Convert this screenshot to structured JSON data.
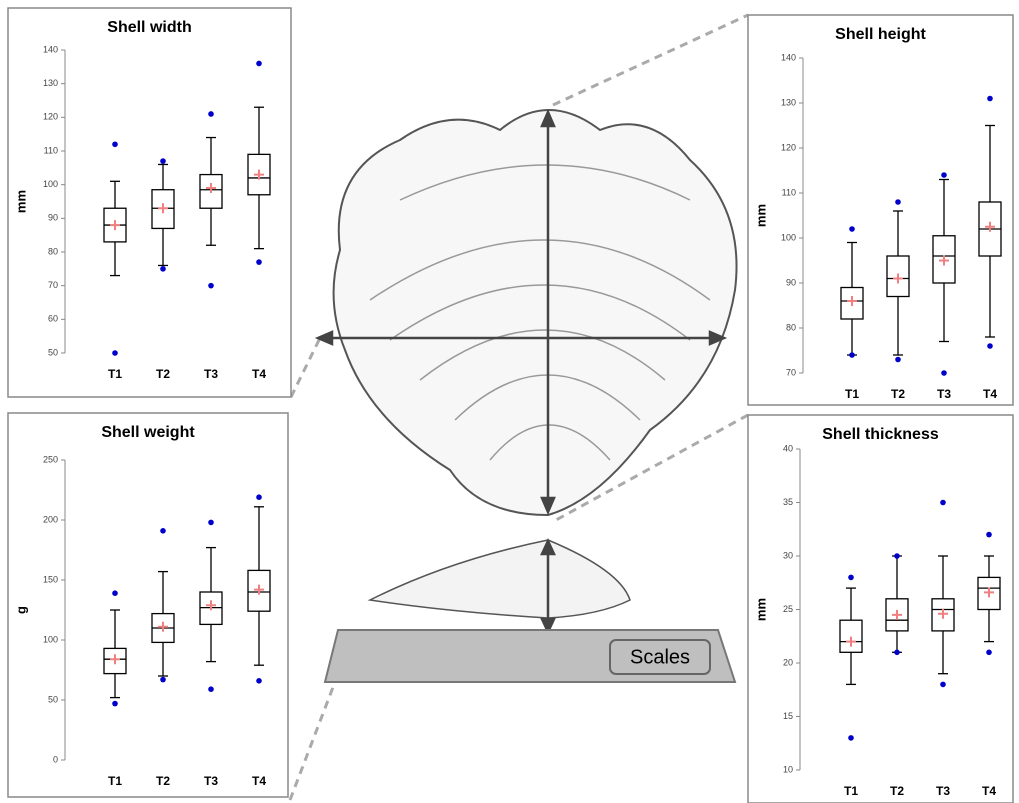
{
  "chart_data": [
    {
      "type": "box",
      "title": "Shell width",
      "y_label": "mm",
      "categories": [
        "T1",
        "T2",
        "T3",
        "T4"
      ],
      "low": [
        73,
        76,
        82,
        81
      ],
      "q1": [
        83,
        87,
        93,
        97
      ],
      "median": [
        88,
        93,
        98.5,
        102
      ],
      "q3": [
        93,
        98.5,
        103,
        109
      ],
      "high": [
        101,
        106,
        114,
        123
      ],
      "mean": [
        88,
        93,
        99,
        103
      ],
      "outliers": [
        [
          50,
          112
        ],
        [
          75,
          107
        ],
        [
          70,
          121
        ],
        [
          77,
          136
        ]
      ],
      "box_color": "#000000",
      "mean_color": "#f08080",
      "outlier_color": "#0000cc",
      "ylim": [
        50,
        140
      ],
      "yticks": [
        50,
        60,
        70,
        80,
        90,
        100,
        110,
        120,
        130,
        140
      ]
    },
    {
      "type": "box",
      "title": "Shell height",
      "y_label": "mm",
      "categories": [
        "T1",
        "T2",
        "T3",
        "T4"
      ],
      "low": [
        74,
        74,
        77,
        78
      ],
      "q1": [
        82,
        87,
        90,
        96
      ],
      "median": [
        86,
        91,
        96,
        102
      ],
      "q3": [
        89,
        96,
        100.5,
        108
      ],
      "high": [
        99,
        106,
        113,
        125
      ],
      "mean": [
        86,
        91,
        95,
        102.5
      ],
      "outliers": [
        [
          74,
          102
        ],
        [
          73,
          108
        ],
        [
          70,
          114
        ],
        [
          76,
          131
        ]
      ],
      "box_color": "#000000",
      "mean_color": "#f08080",
      "outlier_color": "#0000cc",
      "ylim": [
        70,
        140
      ],
      "yticks": [
        70,
        80,
        90,
        100,
        110,
        120,
        130,
        140
      ]
    },
    {
      "type": "box",
      "title": "Shell  weight",
      "y_label": "g",
      "categories": [
        "T1",
        "T2",
        "T3",
        "T4"
      ],
      "low": [
        52,
        70,
        82,
        79
      ],
      "q1": [
        72,
        98,
        113,
        124
      ],
      "median": [
        84,
        110,
        127,
        140
      ],
      "q3": [
        93,
        122,
        140,
        158
      ],
      "high": [
        125,
        157,
        177,
        211
      ],
      "mean": [
        84,
        111,
        129,
        142
      ],
      "outliers": [
        [
          47,
          139
        ],
        [
          67,
          191
        ],
        [
          59,
          198
        ],
        [
          66,
          219
        ]
      ],
      "box_color": "#000000",
      "mean_color": "#f08080",
      "outlier_color": "#0000cc",
      "ylim": [
        0,
        250
      ],
      "yticks": [
        0,
        50,
        100,
        150,
        200,
        250
      ]
    },
    {
      "type": "box",
      "title": "Shell  thickness",
      "y_label": "mm",
      "categories": [
        "T1",
        "T2",
        "T3",
        "T4"
      ],
      "low": [
        18,
        21,
        19,
        22
      ],
      "q1": [
        21,
        23,
        23,
        25
      ],
      "median": [
        22,
        24,
        25,
        27
      ],
      "q3": [
        24,
        26,
        26,
        28
      ],
      "high": [
        27,
        30,
        30,
        30
      ],
      "mean": [
        22,
        24.5,
        24.6,
        26.6
      ],
      "outliers": [
        [
          13,
          28
        ],
        [
          21,
          30
        ],
        [
          18,
          35
        ],
        [
          21,
          32
        ]
      ],
      "box_color": "#000000",
      "mean_color": "#f08080",
      "outlier_color": "#0000cc",
      "ylim": [
        10,
        40
      ],
      "yticks": [
        10,
        15,
        20,
        25,
        30,
        35,
        40
      ]
    }
  ],
  "illustration": {
    "label": "Scales"
  }
}
